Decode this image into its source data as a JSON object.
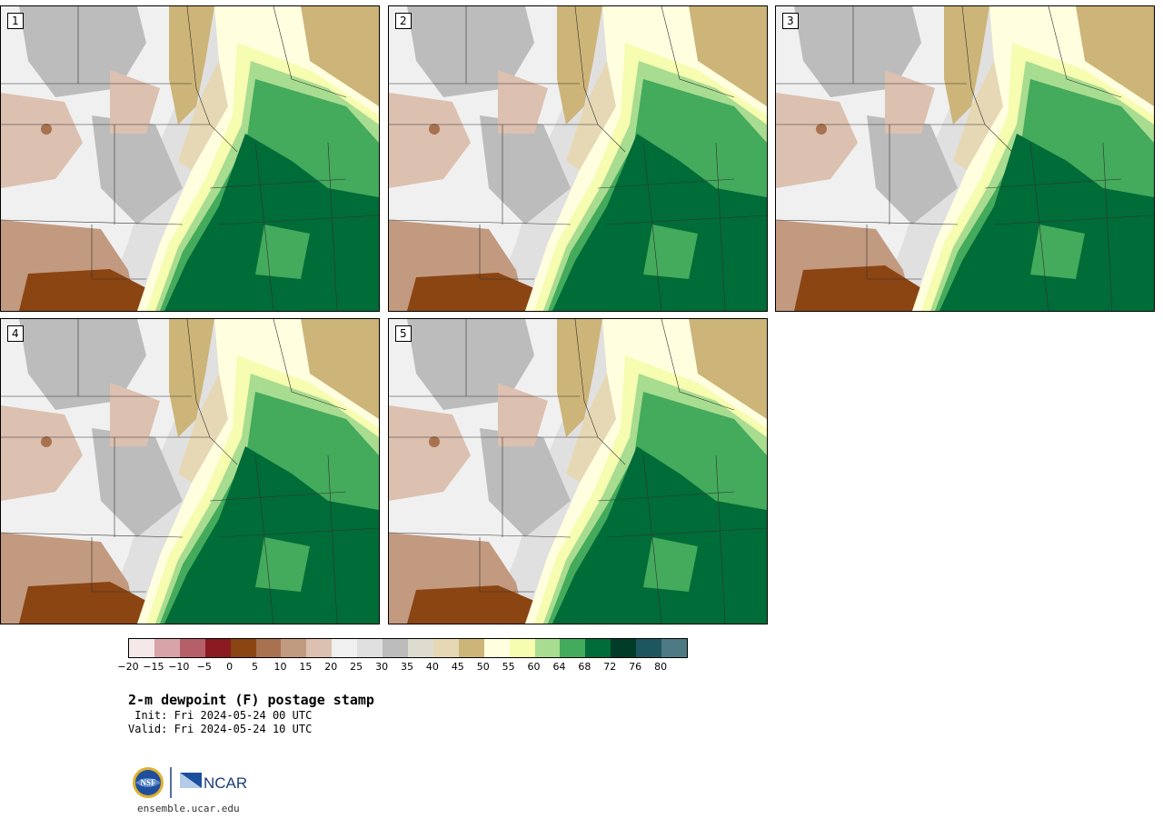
{
  "panels": [
    {
      "label": "1"
    },
    {
      "label": "2"
    },
    {
      "label": "3"
    },
    {
      "label": "4"
    },
    {
      "label": "5"
    }
  ],
  "colorbar": {
    "colors": [
      "#f4e8e8",
      "#d8a4aa",
      "#b56068",
      "#8b1a22",
      "#8b4513",
      "#a87150",
      "#c29a80",
      "#dcc0b0",
      "#f0f0f0",
      "#e0e0e0",
      "#bcbcbc",
      "#dedcce",
      "#e6d8b4",
      "#cdb478",
      "#ffffe0",
      "#f6fcb0",
      "#a8dc90",
      "#44aa5c",
      "#006c38",
      "#003c28",
      "#1e5660",
      "#4e7a84"
    ],
    "ticks": [
      "−20",
      "−15",
      "−10",
      "−5",
      "0",
      "5",
      "10",
      "15",
      "20",
      "25",
      "30",
      "35",
      "40",
      "45",
      "50",
      "55",
      "60",
      "64",
      "68",
      "72",
      "76",
      "80"
    ]
  },
  "title": "2-m dewpoint (F) postage stamp",
  "init": " Init: Fri 2024-05-24 00 UTC",
  "valid": "Valid: Fri 2024-05-24 10 UTC",
  "logo": {
    "left_text": "NSF",
    "right_text": "NCAR"
  },
  "site": "ensemble.ucar.edu"
}
